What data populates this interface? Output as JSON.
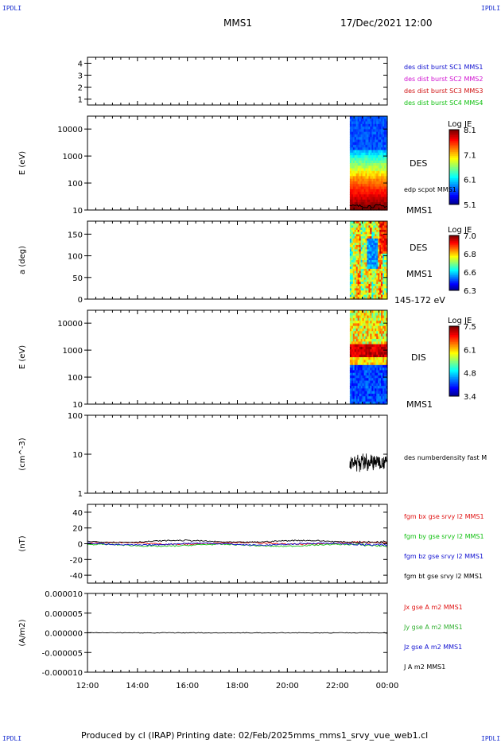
{
  "header": {
    "left_tag": "IPDLI",
    "right_tag": "IPDLI",
    "mission": "MMS1",
    "datetime": "17/Dec/2021 12:00"
  },
  "footer": {
    "credit": "Produced by cl (IRAP)",
    "print_date": "Printing date: 02/Feb/2025",
    "script": "mms_mms1_srvy_vue_web1.cl",
    "bottom_left_tag": "IPDLI",
    "bottom_right_tag": "IPDLI"
  },
  "colors": {
    "mms1": "#1010d0",
    "mms2": "#d010d0",
    "mms3": "#d01010",
    "mms4": "#10c010",
    "bx": "#e01010",
    "by": "#10c010",
    "bz": "#1010d0",
    "bt": "#000000",
    "jx": "#e01010",
    "jy": "#30b030",
    "jz": "#1010d0",
    "j": "#000000"
  },
  "chart_data": [
    {
      "type": "line",
      "panel": "burst-flags",
      "y_ticks": [
        "4",
        "3",
        "2",
        "1"
      ],
      "ylim": [
        0.5,
        4.5
      ],
      "series": [
        {
          "name": "des dist burst SC1 MMS1",
          "values": []
        },
        {
          "name": "des dist burst SC2 MMS2",
          "values": []
        },
        {
          "name": "des dist burst SC3 MMS3",
          "values": []
        },
        {
          "name": "des dist burst SC4 MMS4",
          "values": []
        }
      ]
    },
    {
      "type": "heatmap",
      "panel": "des-energy-spectrogram",
      "ylabel": "E (eV)",
      "y_scale": "log",
      "ylim": [
        10,
        30000
      ],
      "y_ticks": [
        "10000",
        "1000",
        "100",
        "10"
      ],
      "labels": [
        "DES",
        "edp scpot MMS1",
        "MMS1"
      ],
      "colorbar": {
        "title": "Log JE",
        "ticks": [
          "8.1",
          "7.1",
          "6.1",
          "5.1"
        ],
        "range": [
          5.1,
          8.1
        ]
      },
      "data_time_range": [
        "22:30",
        "00:00"
      ]
    },
    {
      "type": "heatmap",
      "panel": "des-pitch-angle",
      "ylabel": "a (deg)",
      "ylim": [
        0,
        180
      ],
      "y_ticks": [
        "150",
        "100",
        "50",
        "0"
      ],
      "labels": [
        "DES",
        "MMS1",
        "145-172 eV"
      ],
      "colorbar": {
        "title": "Log JE",
        "ticks": [
          "7.0",
          "6.8",
          "6.6",
          "6.3"
        ],
        "range": [
          6.3,
          7.0
        ]
      },
      "data_time_range": [
        "22:30",
        "00:00"
      ]
    },
    {
      "type": "heatmap",
      "panel": "dis-energy-spectrogram",
      "ylabel": "E (eV)",
      "y_scale": "log",
      "ylim": [
        10,
        30000
      ],
      "y_ticks": [
        "10000",
        "1000",
        "100",
        "10"
      ],
      "labels": [
        "DIS",
        "MMS1"
      ],
      "colorbar": {
        "title": "Log JE",
        "ticks": [
          "7.5",
          "6.1",
          "4.8",
          "3.4"
        ],
        "range": [
          3.4,
          7.5
        ]
      },
      "data_time_range": [
        "22:30",
        "00:00"
      ]
    },
    {
      "type": "line",
      "panel": "density",
      "ylabel": "(cm^-3)",
      "y_scale": "log",
      "ylim": [
        1,
        100
      ],
      "y_ticks": [
        "100",
        "10",
        "1"
      ],
      "series": [
        {
          "name": "des numberdensity fast M",
          "x": [
            "22:30",
            "23:00",
            "23:30",
            "00:00"
          ],
          "values": [
            5,
            6,
            7,
            6
          ]
        }
      ]
    },
    {
      "type": "line",
      "panel": "magnetic-field",
      "ylabel": "(nT)",
      "ylim": [
        -50,
        50
      ],
      "y_ticks": [
        "40",
        "20",
        "0",
        "-20",
        "-40"
      ],
      "series": [
        {
          "name": "fgm bx gse srvy l2 MMS1",
          "x": [
            "12:00",
            "16:00",
            "20:00",
            "00:00"
          ],
          "values": [
            0,
            1,
            -2,
            0
          ]
        },
        {
          "name": "fgm by gse srvy l2 MMS1",
          "x": [
            "12:00",
            "16:00",
            "20:00",
            "00:00"
          ],
          "values": [
            -2,
            -1,
            -3,
            -2
          ]
        },
        {
          "name": "fgm bz gse srvy l2 MMS1",
          "x": [
            "12:00",
            "16:00",
            "20:00",
            "00:00"
          ],
          "values": [
            -1,
            1,
            -1,
            -2
          ]
        },
        {
          "name": "fgm bt gse srvy l2 MMS1",
          "x": [
            "12:00",
            "16:00",
            "20:00",
            "00:00"
          ],
          "values": [
            3,
            3,
            3,
            5
          ]
        }
      ]
    },
    {
      "type": "line",
      "panel": "current-density",
      "ylabel": "(A/m2)",
      "ylim": [
        -1e-05,
        1e-05
      ],
      "y_ticks": [
        "0.000010",
        "0.000005",
        "0.000000",
        "-0.000005",
        "-0.000010"
      ],
      "series": [
        {
          "name": "Jx gse A m2 MMS1",
          "values": []
        },
        {
          "name": "Jy gse A m2 MMS1",
          "values": []
        },
        {
          "name": "Jz gse A m2 MMS1",
          "values": []
        },
        {
          "name": "J A m2 MMS1",
          "x": [
            "12:00",
            "18:00",
            "00:00"
          ],
          "values": [
            0,
            0,
            0
          ]
        }
      ]
    }
  ],
  "x_axis": {
    "ticks": [
      "12:00",
      "14:00",
      "16:00",
      "18:00",
      "20:00",
      "22:00",
      "00:00"
    ]
  }
}
